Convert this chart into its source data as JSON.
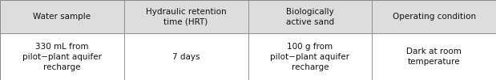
{
  "headers": [
    "Water sample",
    "Hydraulic retention\ntime (HRT)",
    "Biologically\nactive sand",
    "Operating condition"
  ],
  "rows": [
    [
      "330 mL from\npilot−plant aquifer\nrecharge",
      "7 days",
      "100 g from\npilot−plant aquifer\nrecharge",
      "Dark at room\ntemperature"
    ]
  ],
  "header_bg": "#dddddd",
  "cell_bg": "#ffffff",
  "border_color": "#888888",
  "text_color": "#111111",
  "font_size": 7.5,
  "fig_width": 6.19,
  "fig_height": 1.01,
  "dpi": 100
}
